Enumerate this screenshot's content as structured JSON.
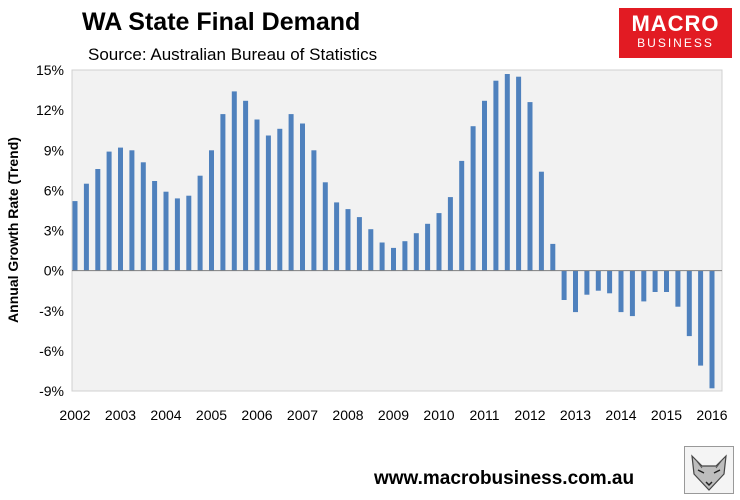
{
  "header": {
    "title": "WA State Final Demand",
    "subtitle": "Source: Australian Bureau of Statistics"
  },
  "logo": {
    "line1": "MACRO",
    "line2": "BUSINESS"
  },
  "footer": {
    "url": "www.macrobusiness.com.au"
  },
  "colors": {
    "bar": "#4f81bd",
    "plot_bg": "#f2f2f2",
    "logo_bg": "#e21b23"
  },
  "chart_data": {
    "type": "bar",
    "title": "WA State Final Demand",
    "subtitle": "Source: Australian Bureau of Statistics",
    "xlabel": "",
    "ylabel": "Annual Growth Rate (Trend)",
    "ylim": [
      -9,
      15
    ],
    "yticks": [
      15,
      12,
      9,
      6,
      3,
      0,
      -3,
      -6,
      -9
    ],
    "ytick_labels": [
      "15%",
      "12%",
      "9%",
      "6%",
      "3%",
      "0%",
      "-3%",
      "-6%",
      "-9%"
    ],
    "x_start": 2002.0,
    "x_step": 0.25,
    "xtick_labels": [
      "2002",
      "2003",
      "2004",
      "2005",
      "2006",
      "2007",
      "2008",
      "2009",
      "2010",
      "2011",
      "2012",
      "2013",
      "2014",
      "2015",
      "2016"
    ],
    "grid": false,
    "series": [
      {
        "name": "WA State Final Demand",
        "values": [
          5.2,
          6.5,
          7.6,
          8.9,
          9.2,
          9.0,
          8.1,
          6.7,
          5.9,
          5.4,
          5.6,
          7.1,
          9.0,
          11.7,
          13.4,
          12.7,
          11.3,
          10.1,
          10.6,
          11.7,
          11.0,
          9.0,
          6.6,
          5.1,
          4.6,
          4.0,
          3.1,
          2.1,
          1.7,
          2.2,
          2.8,
          3.5,
          4.3,
          5.5,
          8.2,
          10.8,
          12.7,
          14.2,
          14.7,
          14.5,
          12.6,
          7.4,
          2.0,
          -2.2,
          -3.1,
          -1.8,
          -1.5,
          -1.7,
          -3.1,
          -3.4,
          -2.3,
          -1.6,
          -1.6,
          -2.7,
          -4.9,
          -7.1,
          -8.8
        ]
      }
    ]
  }
}
